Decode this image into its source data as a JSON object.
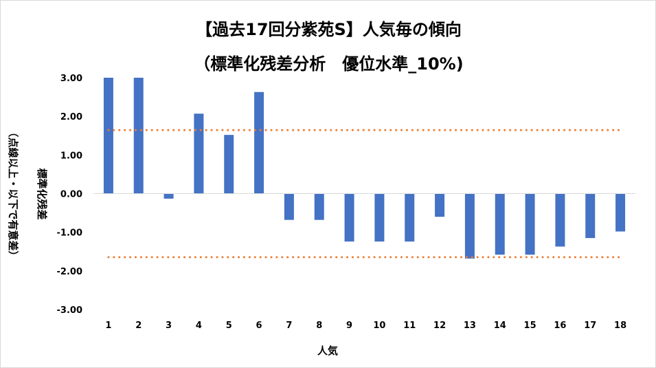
{
  "chart_data": {
    "type": "bar",
    "title_line1": "【過去17回分紫苑S】人気毎の傾向",
    "title_line2": "（標準化残差分析　優位水準_10%)",
    "xlabel": "人気",
    "ylabel_line1": "標準化残差",
    "ylabel_line2": "（点線以上・以下で有意差）",
    "categories": [
      "1",
      "2",
      "3",
      "4",
      "5",
      "6",
      "7",
      "8",
      "9",
      "10",
      "11",
      "12",
      "13",
      "14",
      "15",
      "16",
      "17",
      "18"
    ],
    "values": [
      3.0,
      3.0,
      -0.13,
      2.07,
      1.52,
      2.63,
      -0.68,
      -0.68,
      -1.24,
      -1.24,
      -1.24,
      -0.6,
      -1.68,
      -1.58,
      -1.58,
      -1.37,
      -1.15,
      -0.98
    ],
    "ylim": [
      -3.0,
      3.0
    ],
    "yticks": [
      "3.00",
      "2.00",
      "1.00",
      "0.00",
      "-1.00",
      "-2.00",
      "-3.00"
    ],
    "threshold_upper": 1.645,
    "threshold_lower": -1.645,
    "bar_color": "#4472c4",
    "threshold_color": "#ed7d31",
    "grid": false
  }
}
